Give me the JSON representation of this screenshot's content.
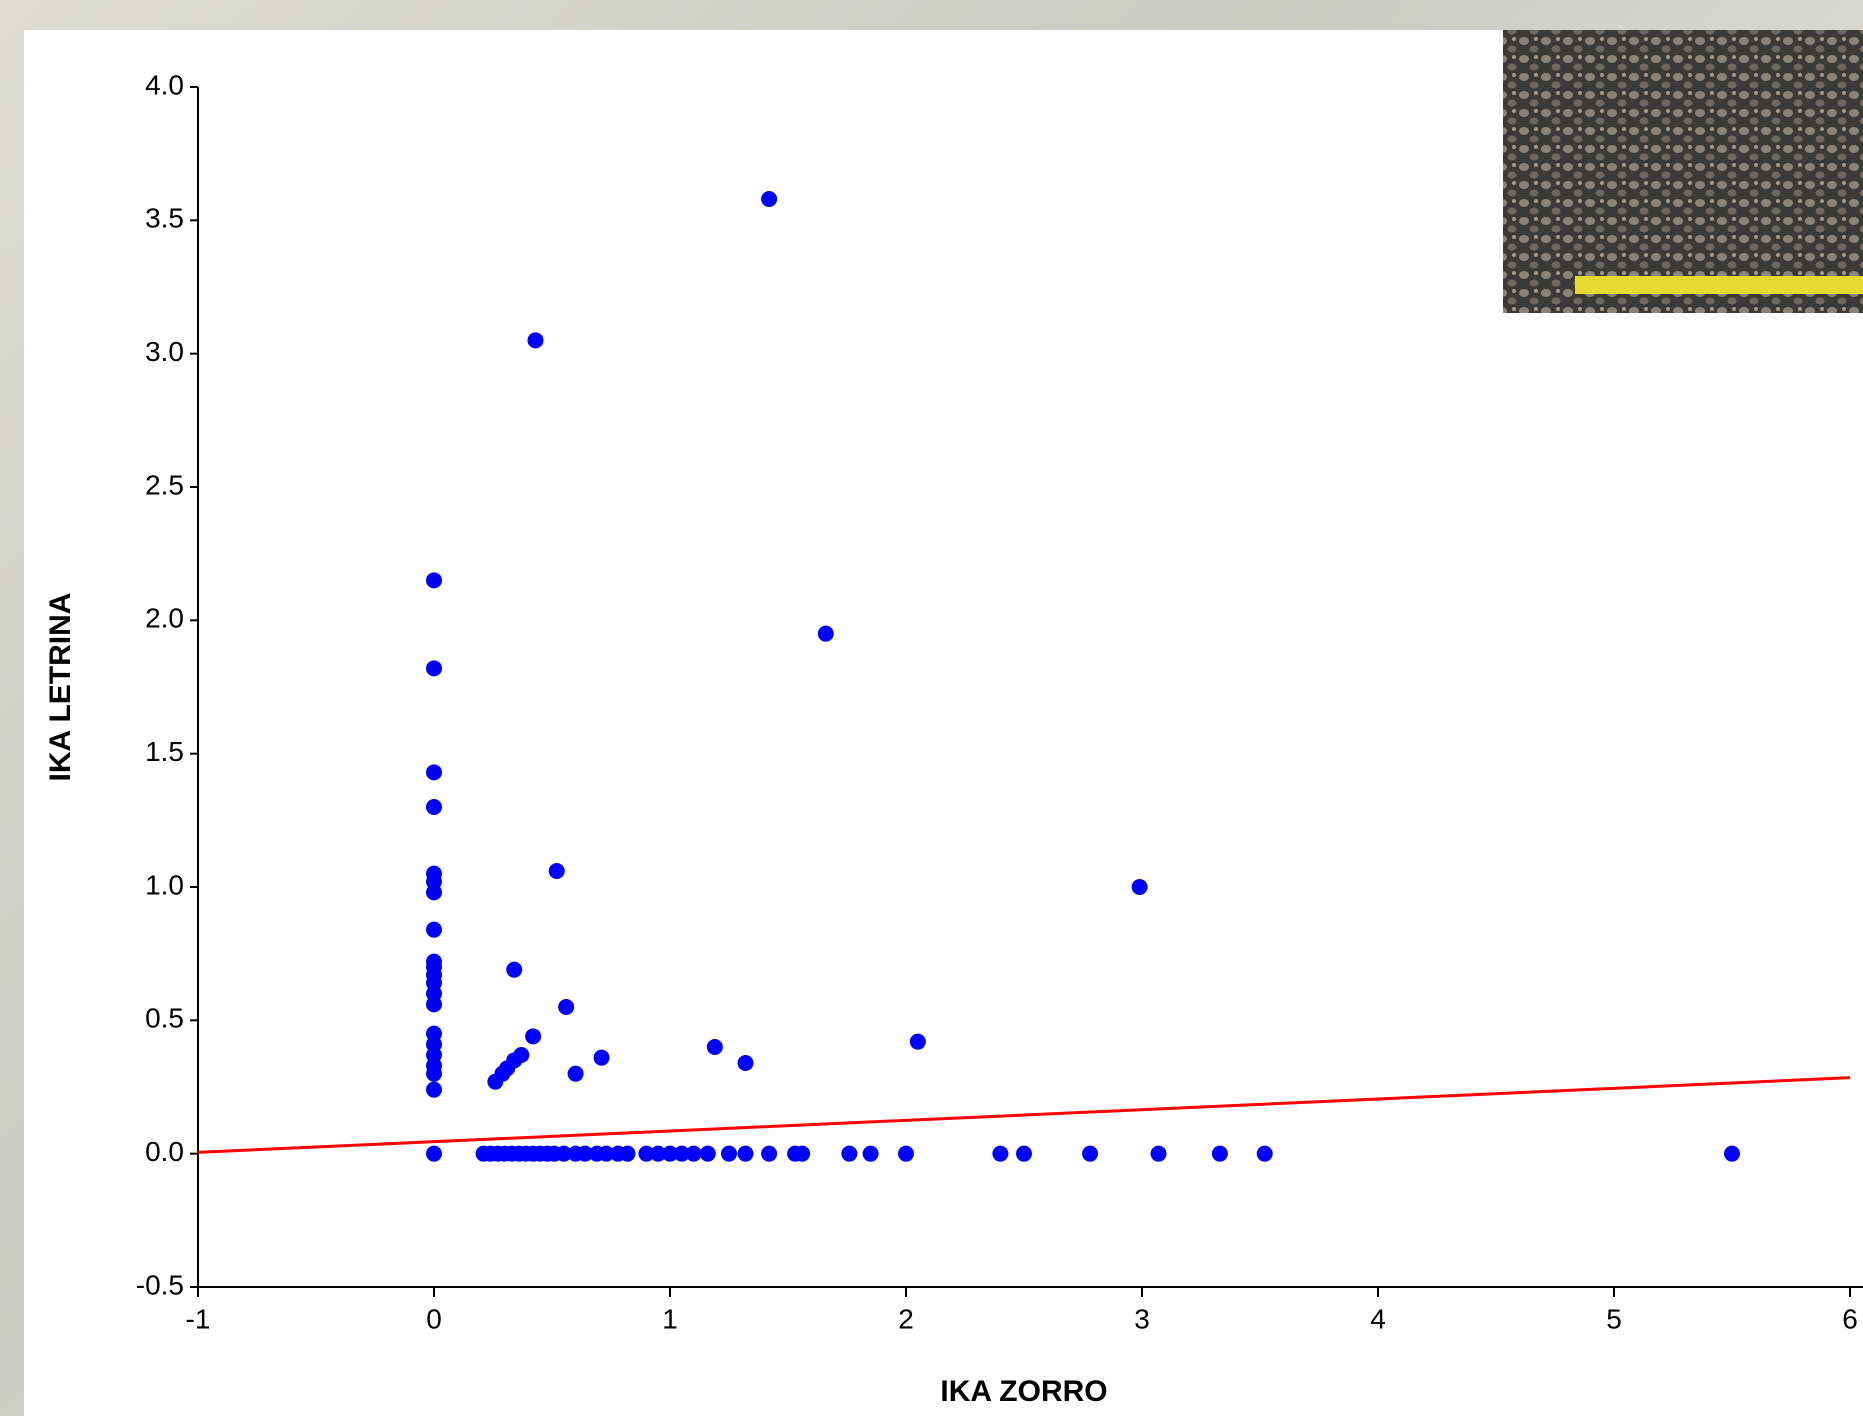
{
  "chart_data": {
    "type": "scatter",
    "x_label": "IKA ZORRO",
    "y_label": "IKA LETRINA",
    "xlim": [
      -1,
      6
    ],
    "ylim": [
      -0.5,
      4
    ],
    "xticks": [
      -1,
      0,
      1,
      2,
      3,
      4,
      5,
      6
    ],
    "yticks": [
      -0.5,
      {
        "value": 0,
        "label": "0.0"
      },
      0.5,
      {
        "value": 1,
        "label": "1.0"
      },
      1.5,
      {
        "value": 2,
        "label": "2.0"
      },
      2.5,
      {
        "value": 3,
        "label": "3.0"
      },
      3.5,
      {
        "value": 4,
        "label": "4.0"
      }
    ],
    "color": "#0000ff",
    "x": [
      0,
      0,
      0,
      0,
      0,
      0,
      0,
      0,
      0,
      0,
      0,
      0,
      0,
      0,
      0,
      0,
      0,
      0,
      0,
      0,
      0,
      0.43,
      1.42,
      1.66,
      0.52,
      2.99,
      0.34,
      0.56,
      0.42,
      0.26,
      0.29,
      0.31,
      0.34,
      0.37,
      0.6,
      0.71,
      1.19,
      1.32,
      2.05,
      0.21,
      0.24,
      0.27,
      0.3,
      0.33,
      0.36,
      0.39,
      0.42,
      0.45,
      0.48,
      0.51,
      0.55,
      0.6,
      0.64,
      0.69,
      0.73,
      0.78,
      0.82,
      0.9,
      0.95,
      1.0,
      1.05,
      1.1,
      1.16,
      1.25,
      1.32,
      1.42,
      1.53,
      1.56,
      1.76,
      1.85,
      2.0,
      2.4,
      2.5,
      2.78,
      3.07,
      3.33,
      3.52,
      5.5
    ],
    "values": [
      2.15,
      1.82,
      1.43,
      1.3,
      1.05,
      1.02,
      0.98,
      0.84,
      0.72,
      0.7,
      0.67,
      0.64,
      0.6,
      0.56,
      0.45,
      0.41,
      0.37,
      0.33,
      0.3,
      0.24,
      0,
      3.05,
      3.58,
      1.95,
      1.06,
      1.0,
      0.69,
      0.55,
      0.44,
      0.27,
      0.3,
      0.32,
      0.35,
      0.37,
      0.3,
      0.36,
      0.4,
      0.34,
      0.42,
      0,
      0,
      0,
      0,
      0,
      0,
      0,
      0,
      0,
      0,
      0,
      0,
      0,
      0,
      0,
      0,
      0,
      0,
      0,
      0,
      0,
      0,
      0,
      0,
      0,
      0,
      0,
      0,
      0,
      0,
      0,
      0,
      0,
      0,
      0,
      0,
      0,
      0,
      0
    ],
    "fit": {
      "x": [
        -1,
        6
      ],
      "values": [
        0.005,
        0.285
      ],
      "color": "#ff0000"
    }
  }
}
